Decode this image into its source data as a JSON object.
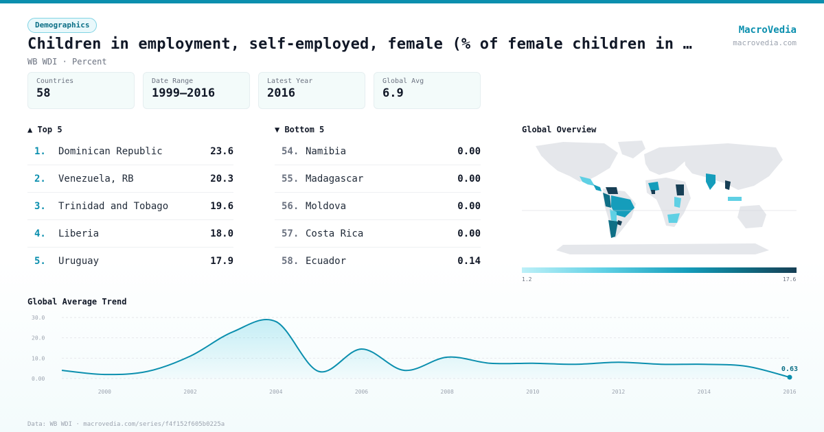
{
  "header": {
    "badge": "Demographics",
    "title": "Children in employment, self-employed, female (% of female children in e…",
    "subtitle": "WB WDI · Percent",
    "brand": "MacroVedia",
    "brand_url": "macrovedia.com"
  },
  "stats": [
    {
      "label": "Countries",
      "value": "58"
    },
    {
      "label": "Date Range",
      "value": "1999–2016"
    },
    {
      "label": "Latest Year",
      "value": "2016"
    },
    {
      "label": "Global Avg",
      "value": "6.9"
    }
  ],
  "top5": {
    "heading": "▲ Top 5",
    "items": [
      {
        "rank": "1.",
        "name": "Dominican Republic",
        "value": "23.6"
      },
      {
        "rank": "2.",
        "name": "Venezuela, RB",
        "value": "20.3"
      },
      {
        "rank": "3.",
        "name": "Trinidad and Tobago",
        "value": "19.6"
      },
      {
        "rank": "4.",
        "name": "Liberia",
        "value": "18.0"
      },
      {
        "rank": "5.",
        "name": "Uruguay",
        "value": "17.9"
      }
    ]
  },
  "bottom5": {
    "heading": "▼ Bottom 5",
    "items": [
      {
        "rank": "54.",
        "name": "Namibia",
        "value": "0.00"
      },
      {
        "rank": "55.",
        "name": "Madagascar",
        "value": "0.00"
      },
      {
        "rank": "56.",
        "name": "Moldova",
        "value": "0.00"
      },
      {
        "rank": "57.",
        "name": "Costa Rica",
        "value": "0.00"
      },
      {
        "rank": "58.",
        "name": "Ecuador",
        "value": "0.14"
      }
    ]
  },
  "map": {
    "heading": "Global Overview",
    "legend_min": "1.2",
    "legend_max": "17.6",
    "colors": {
      "no_data": "#e5e7eb",
      "low": "#bdf0f8",
      "mid": "#159dbb",
      "high": "#173f55"
    }
  },
  "trend": {
    "heading": "Global Average Trend",
    "last_label": "0.63"
  },
  "chart_data": {
    "type": "line",
    "x": [
      1999,
      2000,
      2001,
      2002,
      2003,
      2004,
      2005,
      2006,
      2007,
      2008,
      2009,
      2010,
      2011,
      2012,
      2013,
      2014,
      2015,
      2016
    ],
    "values": [
      4.0,
      2.0,
      3.5,
      11.0,
      23.0,
      28.0,
      3.5,
      14.5,
      4.0,
      10.5,
      7.5,
      7.5,
      7.0,
      8.0,
      7.0,
      7.0,
      6.0,
      0.63
    ],
    "ylim": [
      0,
      30
    ],
    "yticks": [
      "0.00",
      "10.0",
      "20.0",
      "30.0"
    ],
    "xticks": [
      "2000",
      "2002",
      "2004",
      "2006",
      "2008",
      "2010",
      "2012",
      "2014",
      "2016"
    ],
    "grid": true,
    "line_color": "#0b8fae"
  },
  "footer": "Data: WB WDI · macrovedia.com/series/f4f152f605b0225a"
}
